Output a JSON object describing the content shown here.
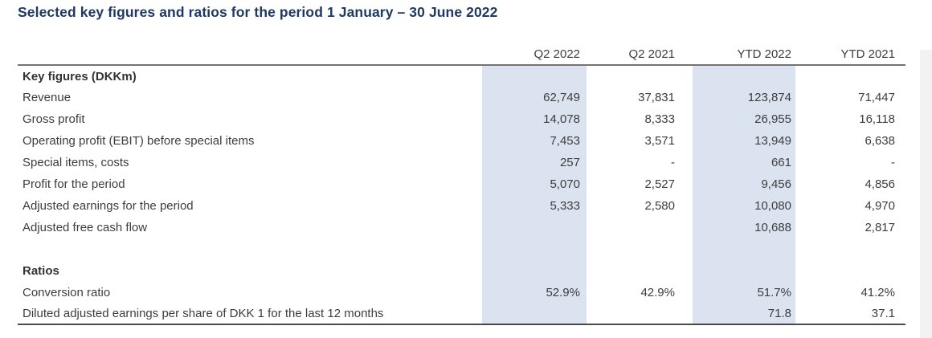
{
  "title": "Selected key figures and ratios for the period 1 January – 30 June 2022",
  "table": {
    "columns": [
      "Q2 2022",
      "Q2 2021",
      "YTD 2022",
      "YTD 2021"
    ],
    "highlighted_columns": [
      "Q2 2022",
      "YTD 2022"
    ],
    "sections": [
      {
        "header": "Key figures (DKKm)",
        "rows": [
          {
            "label": "Revenue",
            "values": [
              "62,749",
              "37,831",
              "123,874",
              "71,447"
            ]
          },
          {
            "label": "Gross profit",
            "values": [
              "14,078",
              "8,333",
              "26,955",
              "16,118"
            ]
          },
          {
            "label": "Operating profit (EBIT) before special items",
            "values": [
              "7,453",
              "3,571",
              "13,949",
              "6,638"
            ]
          },
          {
            "label": "Special items, costs",
            "values": [
              "257",
              "-",
              "661",
              "-"
            ]
          },
          {
            "label": "Profit for the period",
            "values": [
              "5,070",
              "2,527",
              "9,456",
              "4,856"
            ]
          },
          {
            "label": "Adjusted earnings for the period",
            "values": [
              "5,333",
              "2,580",
              "10,080",
              "4,970"
            ]
          },
          {
            "label": "Adjusted free cash flow",
            "values": [
              "",
              "",
              "10,688",
              "2,817"
            ]
          }
        ]
      },
      {
        "header": "Ratios",
        "rows": [
          {
            "label": "Conversion ratio",
            "values": [
              "52.9%",
              "42.9%",
              "51.7%",
              "41.2%"
            ]
          },
          {
            "label": "Diluted adjusted earnings per share of DKK 1 for the last 12 months",
            "values": [
              "",
              "",
              "71.8",
              "37.1"
            ]
          }
        ]
      }
    ]
  },
  "colors": {
    "title": "#1f3864",
    "body_text": "#3d3d3d",
    "column_highlight": "#dbe3f0",
    "header_rule": "#737373",
    "bottom_rule": "#4a4a4a"
  }
}
